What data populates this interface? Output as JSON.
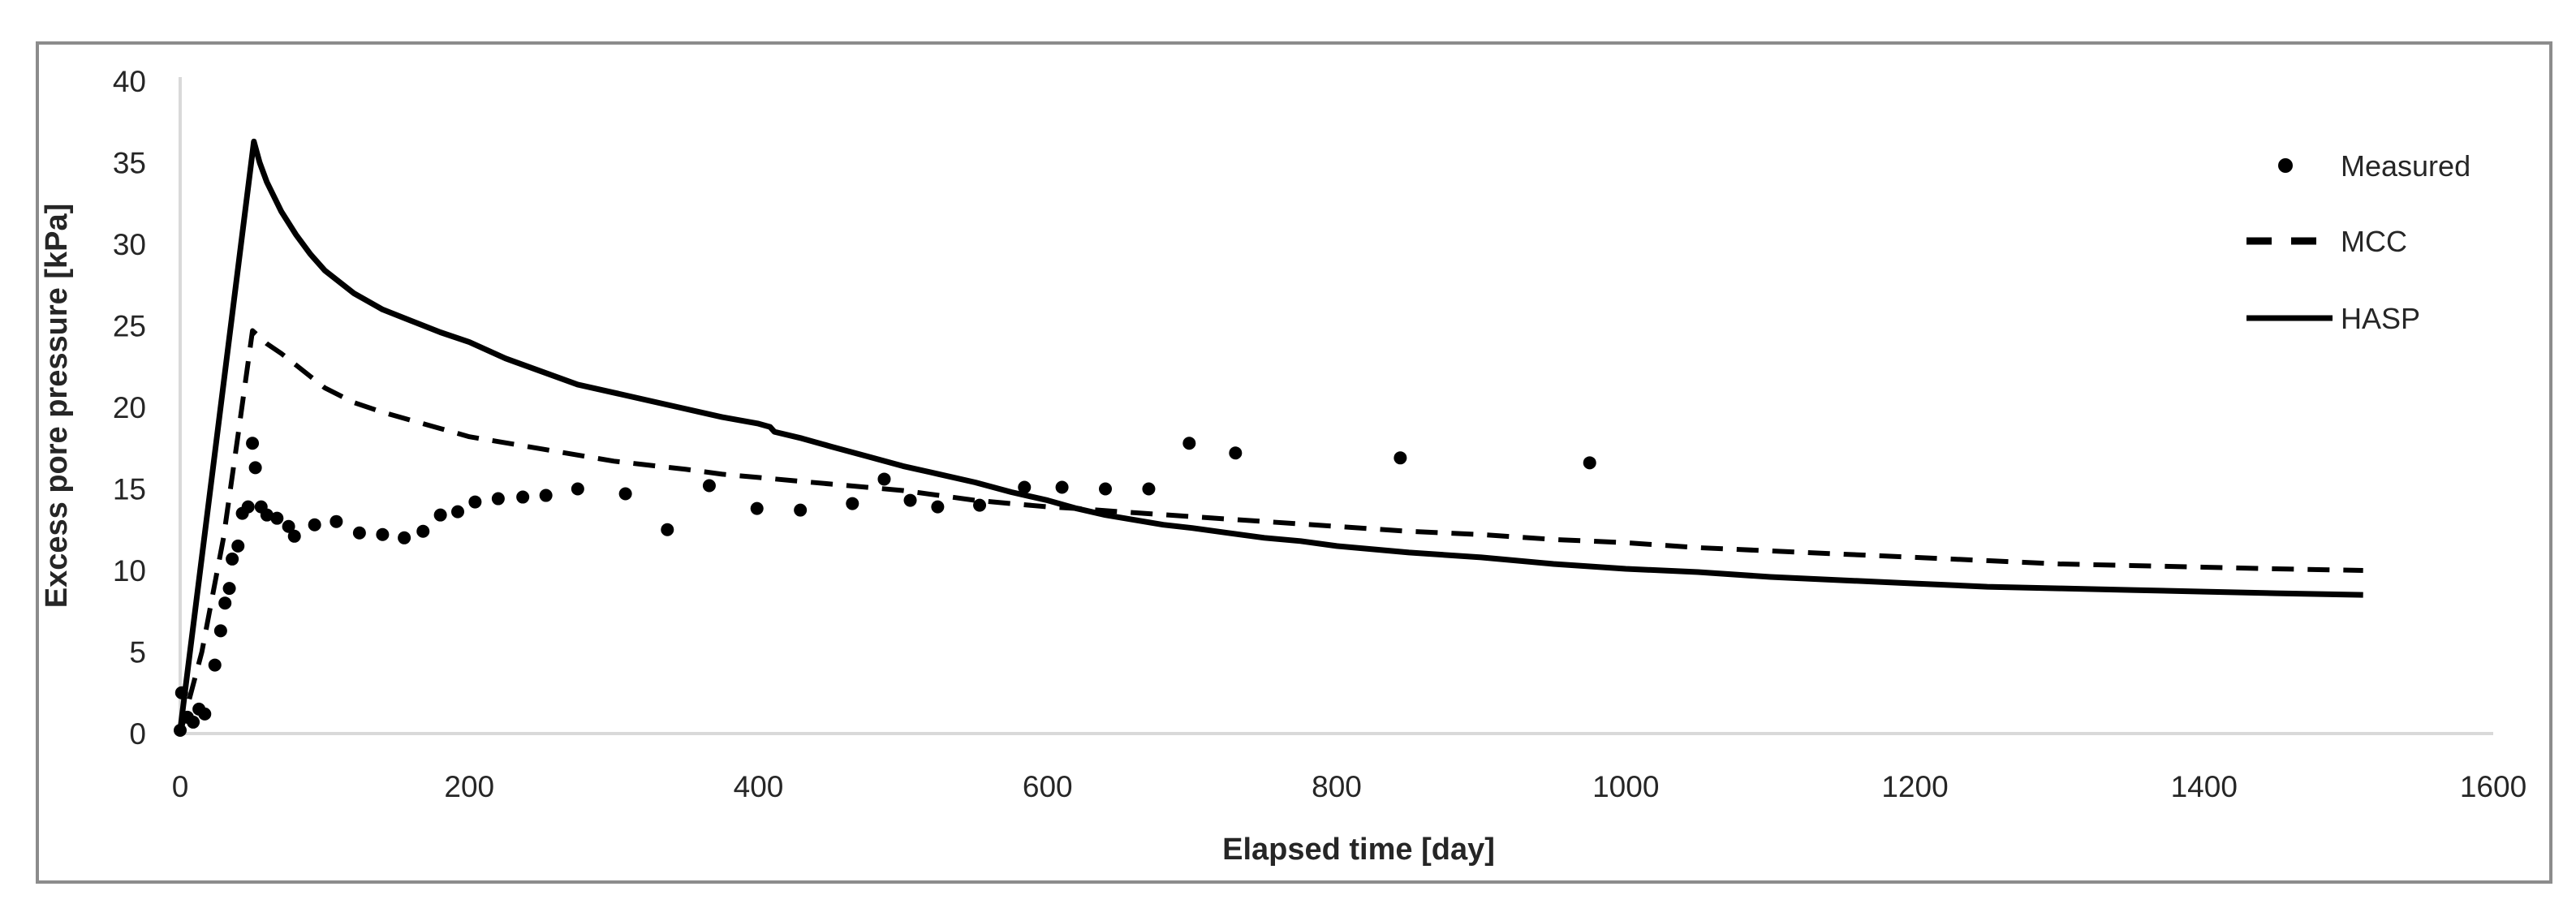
{
  "chart_data": {
    "type": "line",
    "title": "",
    "xlabel": "Elapsed time [day]",
    "ylabel": "Excess pore pressure [kPa]",
    "xlim": [
      0,
      1600
    ],
    "ylim": [
      0,
      40
    ],
    "x_ticks": [
      0,
      200,
      400,
      600,
      800,
      1000,
      1200,
      1400,
      1600
    ],
    "y_ticks": [
      0,
      5,
      10,
      15,
      20,
      25,
      30,
      35,
      40
    ],
    "gridlines": false,
    "legend_position": "top-right",
    "colors": {
      "series": "#000000",
      "axis_line": "#d9d9d9",
      "tick_text": "#262626",
      "frame_border": "#8c8c8c"
    },
    "series": [
      {
        "name": "Measured",
        "type": "scatter",
        "marker": "dot",
        "color": "#000000",
        "points": [
          [
            0,
            0.2
          ],
          [
            1,
            2.5
          ],
          [
            5,
            1.0
          ],
          [
            9,
            0.7
          ],
          [
            13,
            1.5
          ],
          [
            17,
            1.2
          ],
          [
            24,
            4.2
          ],
          [
            28,
            6.3
          ],
          [
            31,
            8.0
          ],
          [
            34,
            8.9
          ],
          [
            36,
            10.7
          ],
          [
            40,
            11.5
          ],
          [
            43,
            13.5
          ],
          [
            47,
            13.9
          ],
          [
            50,
            17.8
          ],
          [
            52,
            16.3
          ],
          [
            56,
            13.9
          ],
          [
            60,
            13.4
          ],
          [
            67,
            13.2
          ],
          [
            75,
            12.7
          ],
          [
            79,
            12.1
          ],
          [
            93,
            12.8
          ],
          [
            108,
            13.0
          ],
          [
            124,
            12.3
          ],
          [
            140,
            12.2
          ],
          [
            155,
            12.0
          ],
          [
            168,
            12.4
          ],
          [
            180,
            13.4
          ],
          [
            192,
            13.6
          ],
          [
            204,
            14.2
          ],
          [
            220,
            14.4
          ],
          [
            237,
            14.5
          ],
          [
            253,
            14.6
          ],
          [
            275,
            15.0
          ],
          [
            308,
            14.7
          ],
          [
            337,
            12.5
          ],
          [
            366,
            15.2
          ],
          [
            399,
            13.8
          ],
          [
            429,
            13.7
          ],
          [
            465,
            14.1
          ],
          [
            487,
            15.6
          ],
          [
            505,
            14.3
          ],
          [
            524,
            13.9
          ],
          [
            553,
            14.0
          ],
          [
            584,
            15.1
          ],
          [
            610,
            15.1
          ],
          [
            640,
            15.0
          ],
          [
            670,
            15.0
          ],
          [
            698,
            17.8
          ],
          [
            730,
            17.2
          ],
          [
            844,
            16.9
          ],
          [
            975,
            16.6
          ]
        ]
      },
      {
        "name": "MCC",
        "type": "line",
        "dash": "dashed",
        "color": "#000000",
        "points": [
          [
            0,
            0
          ],
          [
            15,
            5
          ],
          [
            30,
            12
          ],
          [
            40,
            18.3
          ],
          [
            45,
            21.5
          ],
          [
            48,
            23.4
          ],
          [
            50,
            24.7
          ],
          [
            60,
            23.9
          ],
          [
            70,
            23.3
          ],
          [
            80,
            22.6
          ],
          [
            90,
            21.9
          ],
          [
            100,
            21.2
          ],
          [
            120,
            20.3
          ],
          [
            140,
            19.7
          ],
          [
            160,
            19.2
          ],
          [
            180,
            18.7
          ],
          [
            200,
            18.2
          ],
          [
            220,
            17.9
          ],
          [
            240,
            17.6
          ],
          [
            260,
            17.3
          ],
          [
            280,
            17.0
          ],
          [
            300,
            16.7
          ],
          [
            320,
            16.5
          ],
          [
            350,
            16.2
          ],
          [
            375,
            15.9
          ],
          [
            400,
            15.7
          ],
          [
            425,
            15.5
          ],
          [
            450,
            15.3
          ],
          [
            475,
            15.1
          ],
          [
            500,
            14.9
          ],
          [
            525,
            14.6
          ],
          [
            550,
            14.3
          ],
          [
            575,
            14.1
          ],
          [
            600,
            13.9
          ],
          [
            620,
            13.8
          ],
          [
            650,
            13.6
          ],
          [
            700,
            13.3
          ],
          [
            750,
            13.0
          ],
          [
            800,
            12.7
          ],
          [
            850,
            12.4
          ],
          [
            900,
            12.2
          ],
          [
            950,
            11.9
          ],
          [
            1000,
            11.7
          ],
          [
            1050,
            11.4
          ],
          [
            1100,
            11.2
          ],
          [
            1150,
            11.0
          ],
          [
            1200,
            10.8
          ],
          [
            1250,
            10.6
          ],
          [
            1300,
            10.4
          ],
          [
            1350,
            10.3
          ],
          [
            1400,
            10.2
          ],
          [
            1450,
            10.1
          ],
          [
            1510,
            10.0
          ]
        ]
      },
      {
        "name": "HASP",
        "type": "line",
        "dash": "solid",
        "color": "#000000",
        "points": [
          [
            0,
            0.2
          ],
          [
            51,
            36.3
          ],
          [
            55,
            35.0
          ],
          [
            60,
            33.8
          ],
          [
            70,
            32.0
          ],
          [
            80,
            30.6
          ],
          [
            90,
            29.4
          ],
          [
            100,
            28.4
          ],
          [
            120,
            27.0
          ],
          [
            140,
            26.0
          ],
          [
            160,
            25.3
          ],
          [
            180,
            24.6
          ],
          [
            200,
            24.0
          ],
          [
            225,
            23.0
          ],
          [
            250,
            22.2
          ],
          [
            275,
            21.4
          ],
          [
            300,
            20.9
          ],
          [
            325,
            20.4
          ],
          [
            350,
            19.9
          ],
          [
            375,
            19.4
          ],
          [
            400,
            19.0
          ],
          [
            408,
            18.8
          ],
          [
            411,
            18.5
          ],
          [
            430,
            18.1
          ],
          [
            450,
            17.6
          ],
          [
            475,
            17.0
          ],
          [
            500,
            16.4
          ],
          [
            525,
            15.9
          ],
          [
            550,
            15.4
          ],
          [
            575,
            14.8
          ],
          [
            600,
            14.3
          ],
          [
            620,
            13.8
          ],
          [
            640,
            13.4
          ],
          [
            660,
            13.1
          ],
          [
            680,
            12.8
          ],
          [
            700,
            12.6
          ],
          [
            725,
            12.3
          ],
          [
            750,
            12.0
          ],
          [
            775,
            11.8
          ],
          [
            800,
            11.5
          ],
          [
            850,
            11.1
          ],
          [
            900,
            10.8
          ],
          [
            950,
            10.4
          ],
          [
            1000,
            10.1
          ],
          [
            1050,
            9.9
          ],
          [
            1100,
            9.6
          ],
          [
            1150,
            9.4
          ],
          [
            1200,
            9.2
          ],
          [
            1250,
            9.0
          ],
          [
            1300,
            8.9
          ],
          [
            1350,
            8.8
          ],
          [
            1400,
            8.7
          ],
          [
            1450,
            8.6
          ],
          [
            1510,
            8.5
          ]
        ]
      }
    ]
  }
}
